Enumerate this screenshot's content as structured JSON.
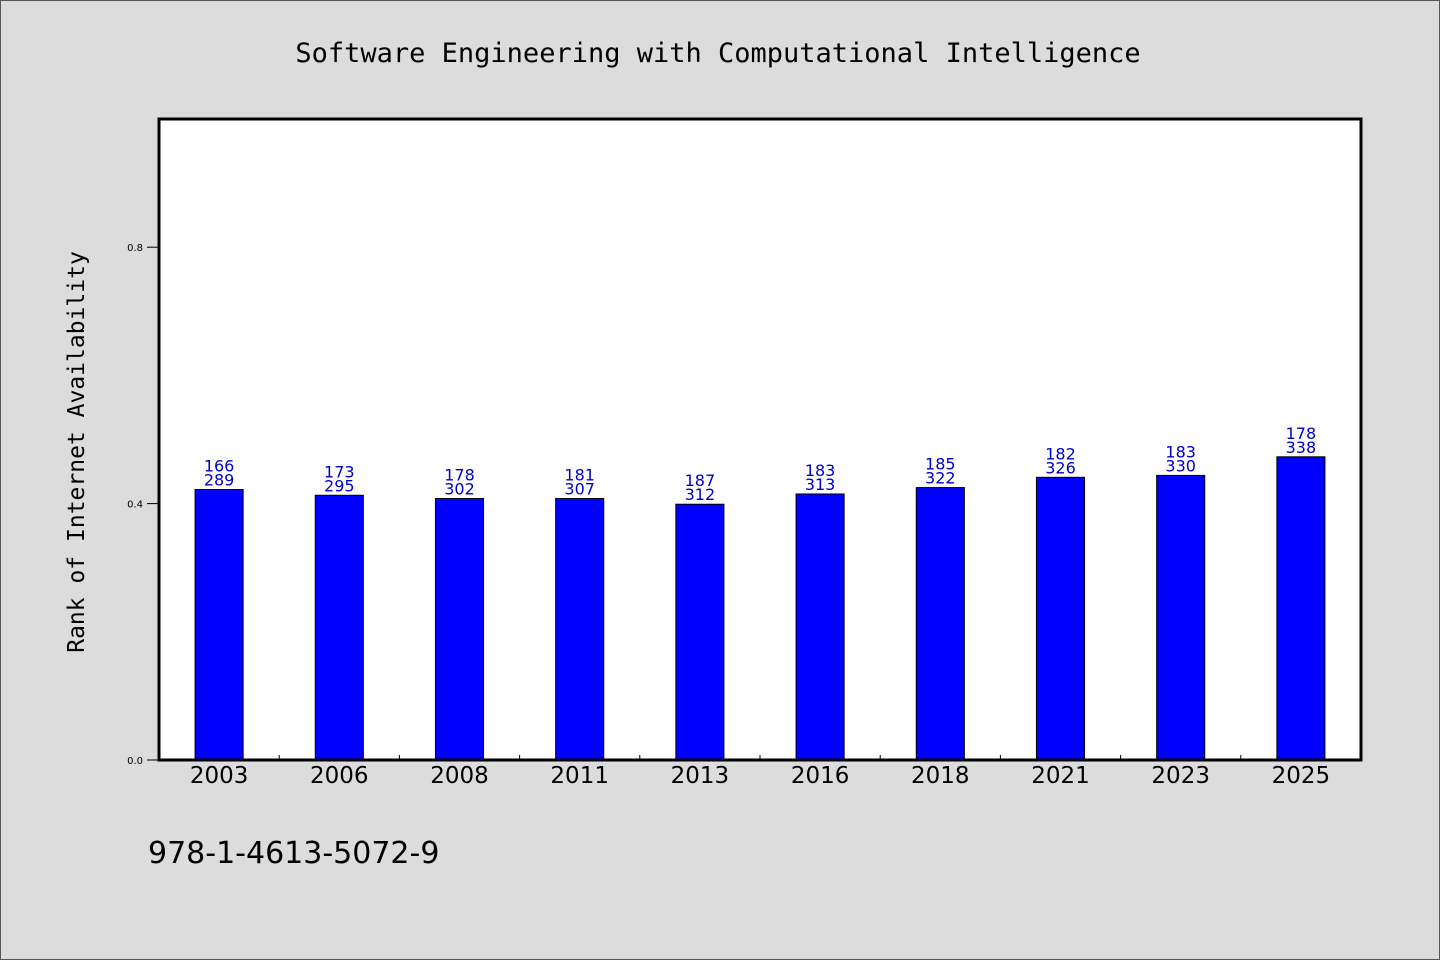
{
  "chart_data": {
    "type": "bar",
    "title": "Software Engineering with Computational Intelligence",
    "ylabel": "Rank of Internet Availability",
    "xlabel": "",
    "categories": [
      "2003",
      "2006",
      "2008",
      "2011",
      "2013",
      "2016",
      "2018",
      "2021",
      "2023",
      "2025"
    ],
    "values": [
      0.422,
      0.413,
      0.408,
      0.408,
      0.399,
      0.415,
      0.425,
      0.441,
      0.444,
      0.473
    ],
    "bar_labels_top": [
      "166",
      "173",
      "178",
      "181",
      "187",
      "183",
      "185",
      "182",
      "183",
      "178"
    ],
    "bar_labels_bottom": [
      "289",
      "295",
      "302",
      "307",
      "312",
      "313",
      "322",
      "326",
      "330",
      "338"
    ],
    "ylim": [
      0,
      1.0
    ],
    "yticks": [
      "0.0",
      "0.4",
      "0.8"
    ],
    "ytick_values": [
      0.0,
      0.4,
      0.8
    ],
    "grid": false,
    "bar_color": "#0000ff",
    "label_color": "#0000cc"
  },
  "footer": {
    "isbn": "978-1-4613-5072-9"
  }
}
